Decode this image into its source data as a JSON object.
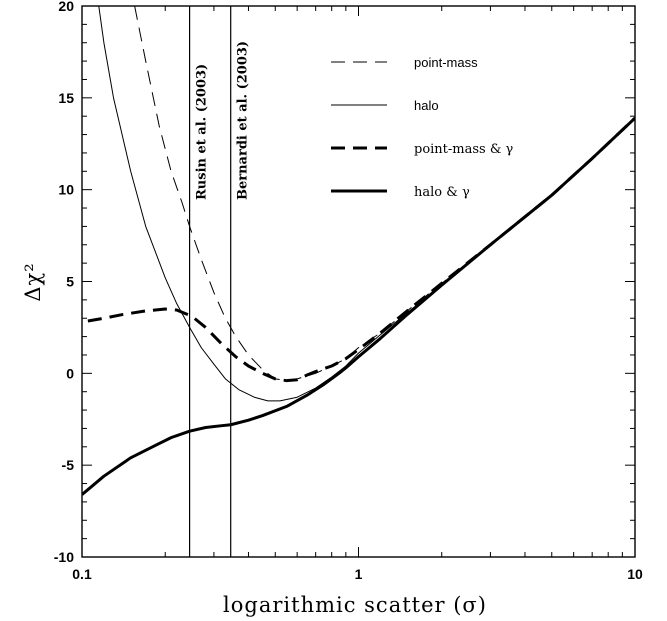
{
  "chart_data": {
    "type": "line",
    "xlabel": "logarithmic scatter (σ)",
    "ylabel": "Δχ²",
    "xscale": "log",
    "xlim": [
      0.1,
      10
    ],
    "ylim": [
      -10,
      20
    ],
    "x_ticks": [
      {
        "value": 0.1,
        "label": "0.1"
      },
      {
        "value": 1,
        "label": "1"
      },
      {
        "value": 10,
        "label": "10"
      }
    ],
    "y_ticks": [
      {
        "value": -10,
        "label": "-10"
      },
      {
        "value": -5,
        "label": "-5"
      },
      {
        "value": 0,
        "label": "0"
      },
      {
        "value": 5,
        "label": "5"
      },
      {
        "value": 10,
        "label": "10"
      },
      {
        "value": 15,
        "label": "15"
      },
      {
        "value": 20,
        "label": "20"
      }
    ],
    "grid": false,
    "legend_position": "top-right",
    "reference_lines": [
      {
        "x": 0.245,
        "label": "Rusin  et al. (2003)"
      },
      {
        "x": 0.345,
        "label": "Bernardi  et al. (2003)"
      }
    ],
    "series": [
      {
        "name": "point-mass",
        "style": "thin-dashed",
        "points": [
          [
            0.155,
            20
          ],
          [
            0.17,
            17
          ],
          [
            0.19,
            13.5
          ],
          [
            0.21,
            11
          ],
          [
            0.23,
            9.3
          ],
          [
            0.245,
            8
          ],
          [
            0.27,
            6.2
          ],
          [
            0.3,
            4.4
          ],
          [
            0.33,
            3
          ],
          [
            0.36,
            2
          ],
          [
            0.4,
            1
          ],
          [
            0.45,
            0.2
          ],
          [
            0.5,
            -0.3
          ],
          [
            0.55,
            -0.4
          ],
          [
            0.6,
            -0.3
          ],
          [
            0.7,
            0
          ],
          [
            0.8,
            0.4
          ],
          [
            0.9,
            0.8
          ],
          [
            1,
            1.4
          ],
          [
            1.2,
            2.2
          ],
          [
            1.5,
            3.4
          ],
          [
            2,
            4.9
          ],
          [
            3,
            7
          ],
          [
            5,
            9.7
          ],
          [
            7,
            11.7
          ],
          [
            10,
            13.9
          ]
        ]
      },
      {
        "name": "halo",
        "style": "thin-solid",
        "points": [
          [
            0.115,
            20
          ],
          [
            0.12,
            18
          ],
          [
            0.13,
            15
          ],
          [
            0.15,
            11
          ],
          [
            0.17,
            8
          ],
          [
            0.2,
            5.2
          ],
          [
            0.22,
            3.8
          ],
          [
            0.245,
            2.5
          ],
          [
            0.27,
            1.4
          ],
          [
            0.3,
            0.5
          ],
          [
            0.33,
            -0.3
          ],
          [
            0.37,
            -0.9
          ],
          [
            0.42,
            -1.3
          ],
          [
            0.47,
            -1.5
          ],
          [
            0.52,
            -1.5
          ],
          [
            0.6,
            -1.3
          ],
          [
            0.7,
            -0.8
          ],
          [
            0.8,
            -0.2
          ],
          [
            0.9,
            0.4
          ],
          [
            1,
            1.1
          ],
          [
            1.2,
            2.1
          ],
          [
            1.5,
            3.3
          ],
          [
            2,
            4.8
          ],
          [
            3,
            7
          ],
          [
            5,
            9.7
          ],
          [
            7,
            11.7
          ],
          [
            10,
            13.9
          ]
        ]
      },
      {
        "name": "point-mass & γ",
        "style": "thick-dashed",
        "points": [
          [
            0.105,
            2.85
          ],
          [
            0.12,
            3
          ],
          [
            0.14,
            3.2
          ],
          [
            0.17,
            3.4
          ],
          [
            0.2,
            3.5
          ],
          [
            0.22,
            3.45
          ],
          [
            0.25,
            3.1
          ],
          [
            0.28,
            2.5
          ],
          [
            0.32,
            1.6
          ],
          [
            0.36,
            0.9
          ],
          [
            0.4,
            0.4
          ],
          [
            0.45,
            0
          ],
          [
            0.5,
            -0.3
          ],
          [
            0.55,
            -0.4
          ],
          [
            0.6,
            -0.35
          ],
          [
            0.65,
            -0.1
          ],
          [
            0.7,
            0.1
          ],
          [
            0.8,
            0.4
          ],
          [
            0.9,
            0.8
          ],
          [
            1,
            1.3
          ],
          [
            1.2,
            2.2
          ],
          [
            1.5,
            3.4
          ],
          [
            2,
            4.9
          ],
          [
            3,
            7
          ],
          [
            5,
            9.7
          ],
          [
            7,
            11.7
          ],
          [
            10,
            13.9
          ]
        ]
      },
      {
        "name": "halo & γ",
        "style": "thick-solid",
        "points": [
          [
            0.1,
            -6.6
          ],
          [
            0.12,
            -5.6
          ],
          [
            0.15,
            -4.6
          ],
          [
            0.18,
            -4.0
          ],
          [
            0.21,
            -3.5
          ],
          [
            0.245,
            -3.15
          ],
          [
            0.28,
            -2.95
          ],
          [
            0.32,
            -2.85
          ],
          [
            0.345,
            -2.8
          ],
          [
            0.4,
            -2.55
          ],
          [
            0.45,
            -2.3
          ],
          [
            0.55,
            -1.8
          ],
          [
            0.65,
            -1.2
          ],
          [
            0.75,
            -0.6
          ],
          [
            0.85,
            0
          ],
          [
            0.9,
            0.3
          ],
          [
            1,
            0.9
          ],
          [
            1.2,
            1.9
          ],
          [
            1.5,
            3.2
          ],
          [
            2,
            4.8
          ],
          [
            3,
            7
          ],
          [
            5,
            9.7
          ],
          [
            7,
            11.7
          ],
          [
            10,
            13.9
          ]
        ]
      }
    ]
  }
}
